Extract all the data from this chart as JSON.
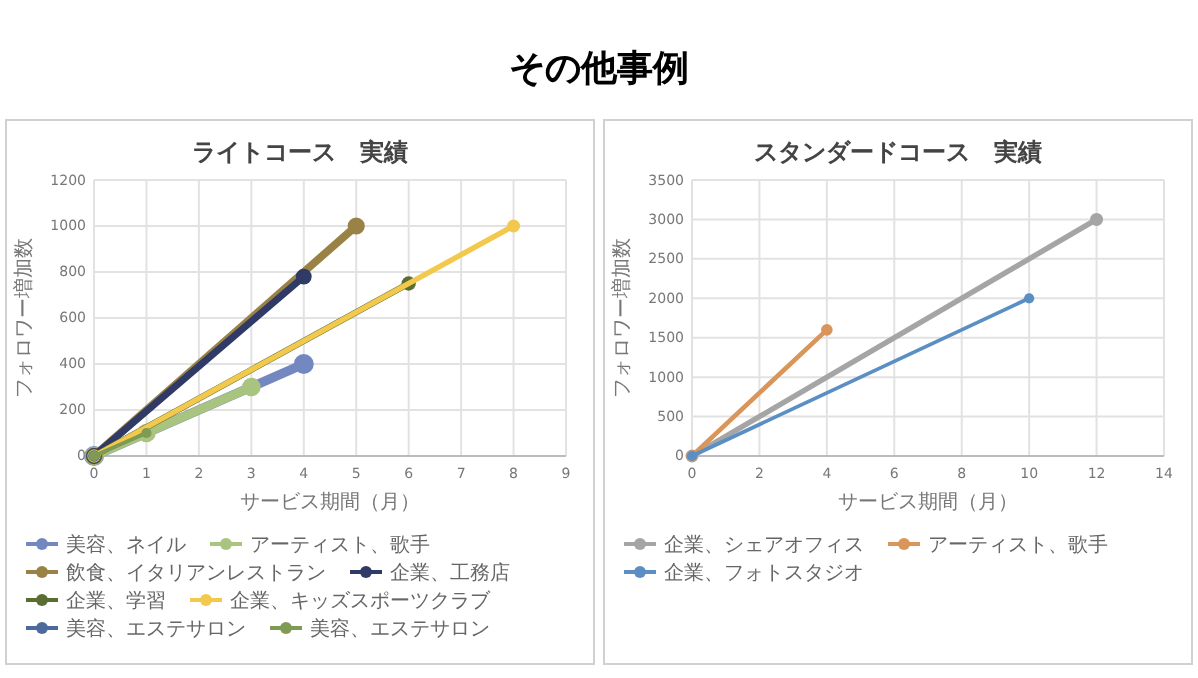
{
  "chart_data": [
    {
      "type": "line",
      "title": "ライトコース　実績",
      "annotations": [
        "その他事例"
      ],
      "xlabel": "サービス期間（月）",
      "ylabel": "フォロワー増加数",
      "xlim": [
        0,
        9
      ],
      "xticks": [
        0,
        1,
        2,
        3,
        4,
        5,
        6,
        7,
        8,
        9
      ],
      "ylim": [
        0,
        1200
      ],
      "yticks": [
        0,
        200,
        400,
        600,
        800,
        1000,
        1200
      ],
      "grid": true,
      "legend": "bottom",
      "marker": "circle",
      "series": [
        {
          "name": "美容、ネイル",
          "color": "#7388c0",
          "x": [
            0,
            4
          ],
          "values": [
            0,
            400
          ]
        },
        {
          "name": "アーティスト、歌手",
          "color": "#a9c47f",
          "x": [
            0,
            1,
            3
          ],
          "values": [
            0,
            100,
            300
          ]
        },
        {
          "name": "飲食、イタリアンレストラン",
          "color": "#9a8246",
          "x": [
            0,
            5
          ],
          "values": [
            0,
            1000
          ]
        },
        {
          "name": "企業、工務店",
          "color": "#2f3b66",
          "x": [
            0,
            4
          ],
          "values": [
            0,
            780
          ]
        },
        {
          "name": "企業、学習",
          "color": "#5a6e34",
          "x": [
            0,
            6
          ],
          "values": [
            0,
            750
          ]
        },
        {
          "name": "企業、キッズスポーツクラブ",
          "color": "#f2c94c",
          "x": [
            0,
            8
          ],
          "values": [
            0,
            1000
          ]
        },
        {
          "name": "美容、エステサロン",
          "color": "#4d6a9c",
          "x": [
            0
          ],
          "values": [
            0
          ]
        },
        {
          "name": "美容、エステサロン",
          "color": "#7f9a52",
          "x": [
            0,
            1
          ],
          "values": [
            0,
            100
          ]
        }
      ]
    },
    {
      "type": "line",
      "title": "スタンダードコース　実績",
      "xlabel": "サービス期間（月）",
      "ylabel": "フォロワー増加数",
      "xlim": [
        0,
        14
      ],
      "xticks": [
        0,
        2,
        4,
        6,
        8,
        10,
        12,
        14
      ],
      "ylim": [
        0,
        3500
      ],
      "yticks": [
        0,
        500,
        1000,
        1500,
        2000,
        2500,
        3000,
        3500
      ],
      "grid": true,
      "legend": "bottom",
      "marker": "circle",
      "series": [
        {
          "name": "企業、シェアオフィス",
          "color": "#a5a5a5",
          "x": [
            0,
            12
          ],
          "values": [
            0,
            3000
          ]
        },
        {
          "name": "アーティスト、歌手",
          "color": "#d9955a",
          "x": [
            0,
            4
          ],
          "values": [
            0,
            1600
          ]
        },
        {
          "name": "企業、フォトスタジオ",
          "color": "#5b8fc4",
          "x": [
            0,
            10
          ],
          "values": [
            0,
            2000
          ]
        }
      ]
    }
  ]
}
